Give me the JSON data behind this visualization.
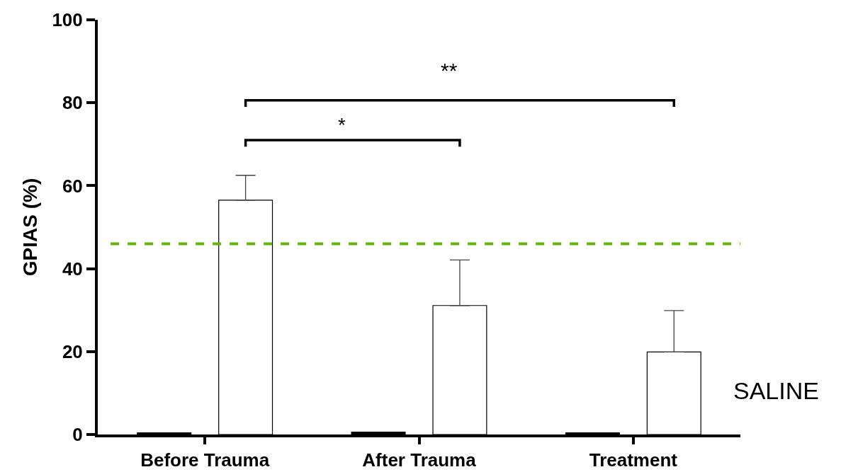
{
  "chart_data": {
    "type": "bar",
    "ylabel": "GPIAS (%)",
    "categories": [
      "Before Trauma",
      "After Trauma",
      "Treatment"
    ],
    "series": [
      {
        "color": "#000000",
        "values": [
          0.4,
          0.6,
          0.4
        ]
      },
      {
        "color": "#ffffff",
        "values": [
          56.5,
          31.1,
          19.9
        ],
        "errors": [
          [
            56.5,
            62.5
          ],
          [
            31.1,
            42.1
          ],
          [
            19.9,
            29.9
          ]
        ]
      }
    ],
    "ylim": [
      0,
      100
    ],
    "yticks": [
      0,
      20,
      40,
      60,
      80,
      100
    ],
    "grid": false,
    "ref_lines": [
      {
        "axis": "y",
        "value": 46,
        "color": "#66b10a",
        "line_style": "dashed"
      }
    ],
    "annotations": [
      "*",
      "**",
      "SALINE"
    ]
  }
}
